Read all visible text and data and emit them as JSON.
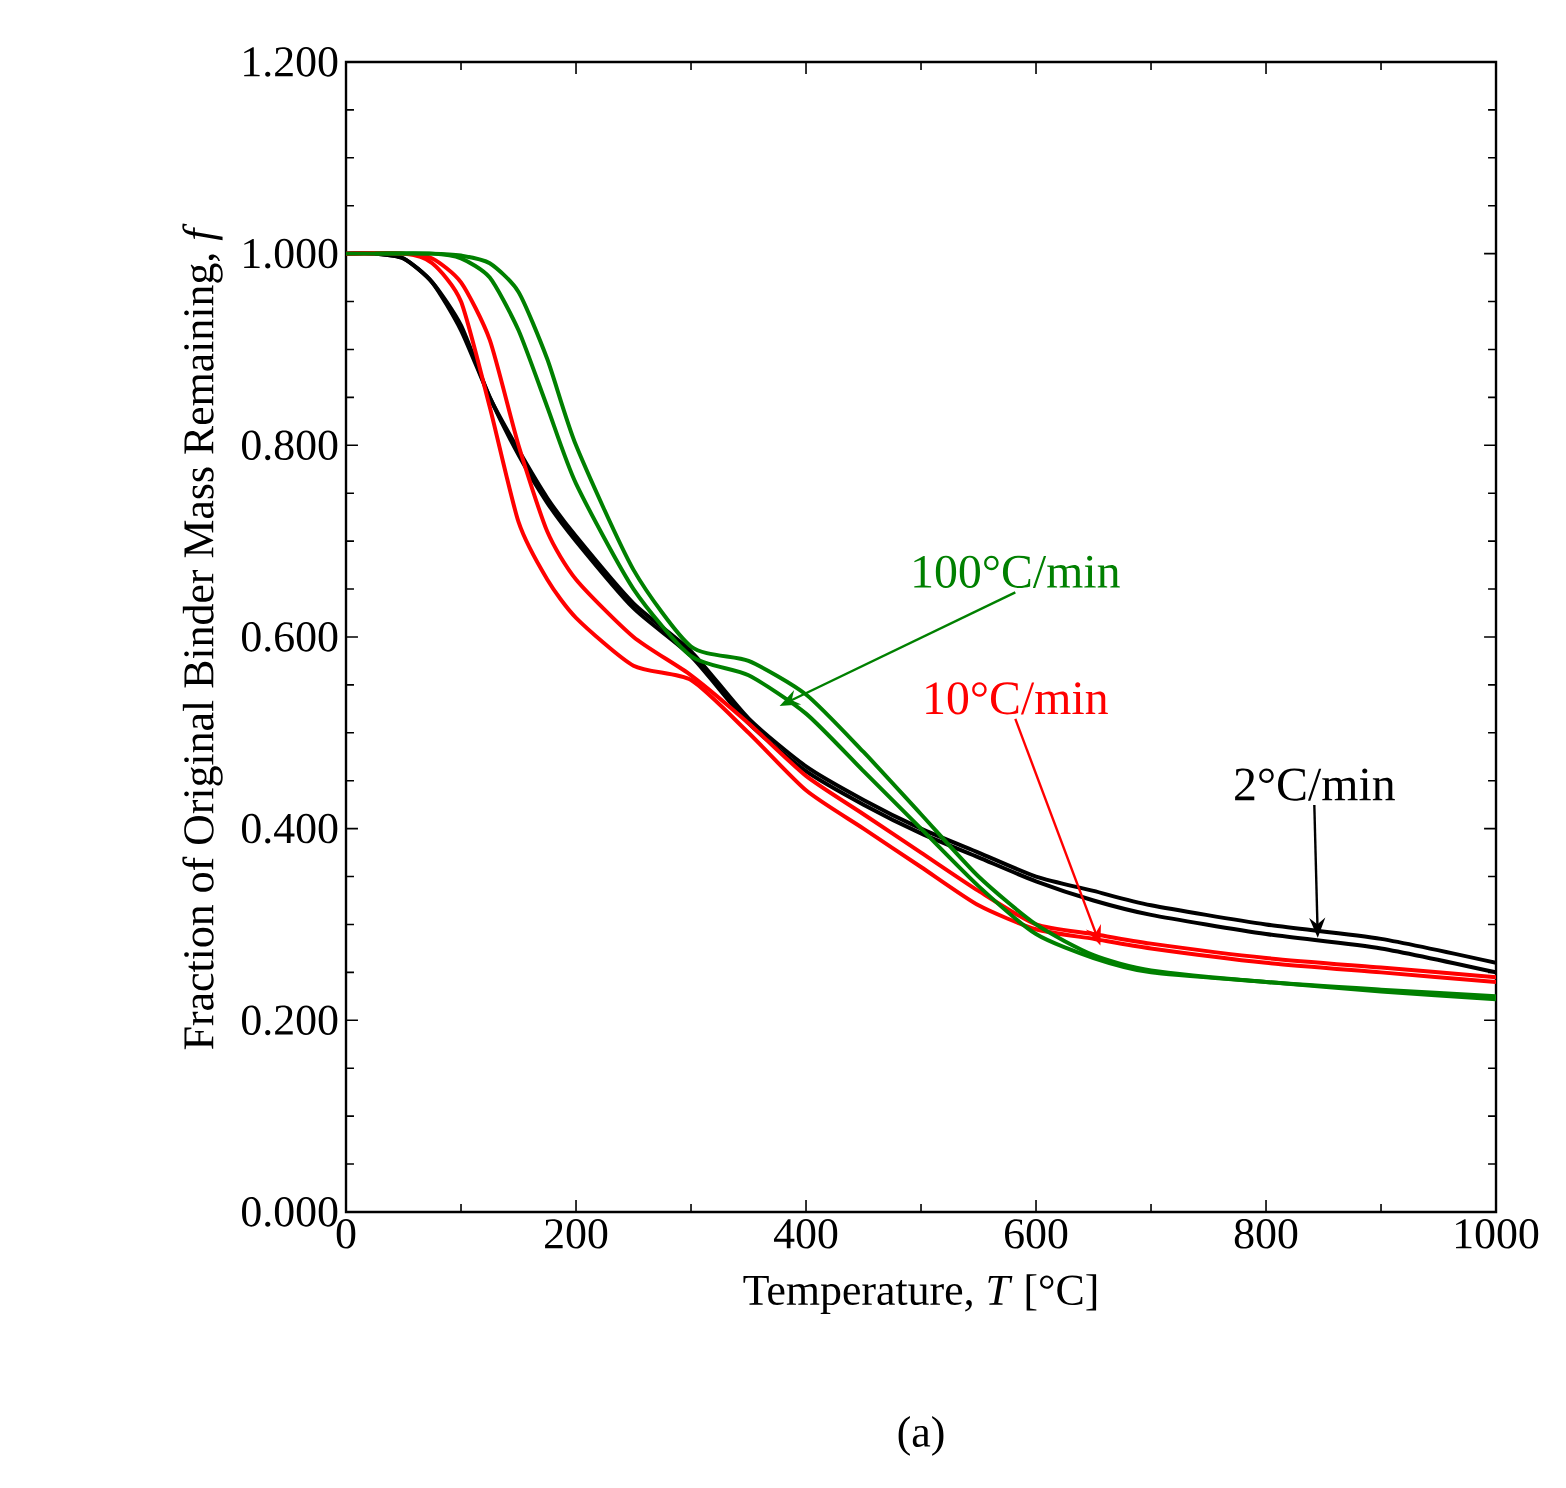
{
  "chart_data": {
    "type": "line",
    "xlabel": "Temperature, *T* [°C]",
    "ylabel": "Fraction of Original Binder Mass Remaining, *f*",
    "xlim": [
      0,
      1000
    ],
    "ylim": [
      0,
      1.2
    ],
    "xticks": [
      0,
      200,
      400,
      600,
      800,
      1000
    ],
    "yticks": [
      {
        "value": 0,
        "label": "0.000"
      },
      {
        "value": 0.2,
        "label": "0.200"
      },
      {
        "value": 0.4,
        "label": "0.400"
      },
      {
        "value": 0.6,
        "label": "0.600"
      },
      {
        "value": 0.8,
        "label": "0.800"
      },
      {
        "value": 1.0,
        "label": "1.000"
      },
      {
        "value": 1.2,
        "label": "1.200"
      }
    ],
    "grid": false,
    "marker": "none",
    "line_style": "solid",
    "series": [
      {
        "color": "#000000",
        "x": [
          0,
          25,
          50,
          75,
          100,
          125,
          150,
          175,
          200,
          250,
          300,
          350,
          400,
          450,
          500,
          550,
          600,
          650,
          700,
          800,
          900,
          1000
        ],
        "values": [
          1.0,
          1.0,
          0.995,
          0.97,
          0.92,
          0.85,
          0.79,
          0.74,
          0.7,
          0.63,
          0.58,
          0.51,
          0.46,
          0.425,
          0.395,
          0.37,
          0.345,
          0.325,
          0.31,
          0.29,
          0.275,
          0.25
        ]
      },
      {
        "color": "#000000",
        "x": [
          0,
          25,
          50,
          75,
          100,
          125,
          150,
          175,
          200,
          250,
          300,
          350,
          400,
          450,
          500,
          550,
          600,
          650,
          700,
          800,
          900,
          1000
        ],
        "values": [
          1.0,
          1.0,
          0.995,
          0.97,
          0.925,
          0.85,
          0.795,
          0.745,
          0.705,
          0.635,
          0.585,
          0.515,
          0.465,
          0.43,
          0.4,
          0.375,
          0.35,
          0.335,
          0.32,
          0.3,
          0.285,
          0.26
        ]
      },
      {
        "color": "#ff0000",
        "x": [
          0,
          50,
          75,
          100,
          125,
          150,
          175,
          200,
          250,
          300,
          350,
          400,
          450,
          500,
          550,
          600,
          650,
          700,
          800,
          900,
          1000
        ],
        "values": [
          1.0,
          1.0,
          0.99,
          0.95,
          0.84,
          0.72,
          0.66,
          0.62,
          0.57,
          0.555,
          0.5,
          0.44,
          0.4,
          0.36,
          0.32,
          0.295,
          0.285,
          0.275,
          0.26,
          0.25,
          0.24
        ]
      },
      {
        "color": "#ff0000",
        "x": [
          0,
          50,
          75,
          100,
          125,
          150,
          175,
          200,
          250,
          300,
          350,
          400,
          450,
          500,
          550,
          600,
          650,
          700,
          800,
          900,
          1000
        ],
        "values": [
          1.0,
          1.0,
          0.995,
          0.97,
          0.91,
          0.8,
          0.71,
          0.66,
          0.6,
          0.56,
          0.51,
          0.455,
          0.415,
          0.375,
          0.335,
          0.3,
          0.29,
          0.28,
          0.265,
          0.255,
          0.245
        ]
      },
      {
        "color": "#008000",
        "x": [
          25,
          75,
          100,
          125,
          150,
          175,
          200,
          250,
          300,
          350,
          400,
          450,
          500,
          550,
          600,
          650,
          700,
          800,
          900,
          1000
        ],
        "values": [
          1.0,
          1.0,
          0.995,
          0.975,
          0.92,
          0.84,
          0.76,
          0.65,
          0.58,
          0.56,
          0.52,
          0.46,
          0.4,
          0.34,
          0.29,
          0.265,
          0.25,
          0.24,
          0.23,
          0.222
        ]
      },
      {
        "color": "#008000",
        "x": [
          0,
          75,
          100,
          125,
          150,
          175,
          200,
          250,
          300,
          350,
          400,
          450,
          500,
          550,
          600,
          650,
          700,
          800,
          900,
          1000
        ],
        "values": [
          1.0,
          1.0,
          0.998,
          0.99,
          0.96,
          0.89,
          0.8,
          0.67,
          0.59,
          0.575,
          0.54,
          0.48,
          0.415,
          0.35,
          0.3,
          0.268,
          0.252,
          0.24,
          0.232,
          0.225
        ]
      }
    ],
    "annotations": [
      {
        "text": "100°C/min",
        "x": 377,
        "y": 0.528
      },
      {
        "text": "10°C/min",
        "x": 656,
        "y": 0.278
      },
      {
        "text": "2°C/min",
        "x": 845,
        "y": 0.286
      },
      "(a)"
    ]
  }
}
